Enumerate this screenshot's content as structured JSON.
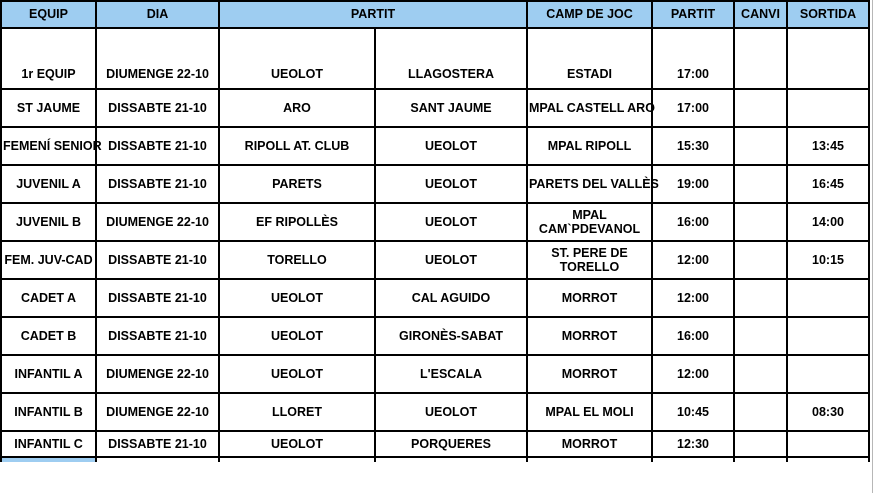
{
  "colors": {
    "header_bg": "#9ECDF1",
    "border": "#000000",
    "text": "#000000"
  },
  "table": {
    "headers": [
      "EQUIP",
      "DIA",
      "PARTIT",
      "CAMP DE JOC",
      "PARTIT",
      "CANVI",
      "SORTIDA"
    ],
    "rows": [
      {
        "equip": "1r EQUIP",
        "dia": "DIUMENGE 22-10",
        "home": "UEOLOT",
        "away": "LLAGOSTERA",
        "camp": [
          "ESTADI"
        ],
        "partit": "17:00",
        "canvi": "",
        "sortida": ""
      },
      {
        "equip": "ST JAUME",
        "dia": "DISSABTE 21-10",
        "home": "ARO",
        "away": "SANT JAUME",
        "camp": [
          "MPAL CASTELL ARO"
        ],
        "partit": "17:00",
        "canvi": "",
        "sortida": ""
      },
      {
        "equip": "FEMENÍ SENIOR",
        "dia": "DISSABTE 21-10",
        "home": "RIPOLL AT. CLUB",
        "away": "UEOLOT",
        "camp": [
          "MPAL RIPOLL"
        ],
        "partit": "15:30",
        "canvi": "",
        "sortida": "13:45"
      },
      {
        "equip": "JUVENIL A",
        "dia": "DISSABTE 21-10",
        "home": "PARETS",
        "away": "UEOLOT",
        "camp": [
          "PARETS DEL VALLÈS"
        ],
        "partit": "19:00",
        "canvi": "",
        "sortida": "16:45"
      },
      {
        "equip": "JUVENIL B",
        "dia": "DIUMENGE 22-10",
        "home": "EF RIPOLLÈS",
        "away": "UEOLOT",
        "camp": [
          "MPAL",
          "CAM`PDEVANOL"
        ],
        "partit": "16:00",
        "canvi": "",
        "sortida": "14:00"
      },
      {
        "equip": "FEM. JUV-CAD",
        "dia": "DISSABTE 21-10",
        "home": "TORELLO",
        "away": "UEOLOT",
        "camp": [
          "ST. PERE DE",
          "TORELLO"
        ],
        "partit": "12:00",
        "canvi": "",
        "sortida": "10:15"
      },
      {
        "equip": "CADET A",
        "dia": "DISSABTE 21-10",
        "home": "UEOLOT",
        "away": "CAL AGUIDO",
        "camp": [
          "MORROT"
        ],
        "partit": "12:00",
        "canvi": "",
        "sortida": ""
      },
      {
        "equip": "CADET B",
        "dia": "DISSABTE 21-10",
        "home": "UEOLOT",
        "away": "GIRONÈS-SABAT",
        "camp": [
          "MORROT"
        ],
        "partit": "16:00",
        "canvi": "",
        "sortida": ""
      },
      {
        "equip": "INFANTIL A",
        "dia": "DIUMENGE 22-10",
        "home": "UEOLOT",
        "away": "L'ESCALA",
        "camp": [
          "MORROT"
        ],
        "partit": "12:00",
        "canvi": "",
        "sortida": ""
      },
      {
        "equip": "INFANTIL B",
        "dia": "DIUMENGE 22-10",
        "home": "LLORET",
        "away": "UEOLOT",
        "camp": [
          "MPAL EL MOLI"
        ],
        "partit": "10:45",
        "canvi": "",
        "sortida": "08:30"
      },
      {
        "equip": "INFANTIL C",
        "dia": "DISSABTE 21-10",
        "home": "UEOLOT",
        "away": "PORQUERES",
        "camp": [
          "MORROT"
        ],
        "partit": "12:30",
        "canvi": "",
        "sortida": ""
      }
    ]
  }
}
